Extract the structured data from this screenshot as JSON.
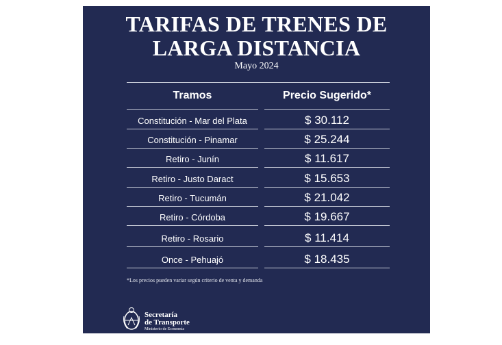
{
  "title": {
    "line1": "TARIFAS DE TRENES DE",
    "line2": "LARGA DISTANCIA",
    "subtitle": "Mayo 2024"
  },
  "table": {
    "headers": [
      "Tramos",
      "Precio Sugerido*"
    ],
    "rows": [
      {
        "route": "Constitución - Mar del Plata",
        "price": "$ 30.112"
      },
      {
        "route": "Constitución - Pinamar",
        "price": "$ 25.244"
      },
      {
        "route": "Retiro - Junín",
        "price": "$ 11.617"
      },
      {
        "route": "Retiro - Justo Daract",
        "price": "$ 15.653"
      },
      {
        "route": "Retiro - Tucumán",
        "price": "$ 21.042"
      },
      {
        "route": "Retiro - Córdoba",
        "price": "$ 19.667"
      },
      {
        "route": "Retiro - Rosario",
        "price": "$ 11.414"
      },
      {
        "route": "Once - Pehuajó",
        "price": "$ 18.435"
      }
    ]
  },
  "footnote": "*Los precios pueden variar según criterio de venta y demanda",
  "logo": {
    "line1": "Secretaría",
    "line2": "de Transporte",
    "line3": "Ministerio de Economía"
  },
  "colors": {
    "background": "#222a52",
    "text": "#ffffff",
    "rule": "#c8ccd8"
  }
}
